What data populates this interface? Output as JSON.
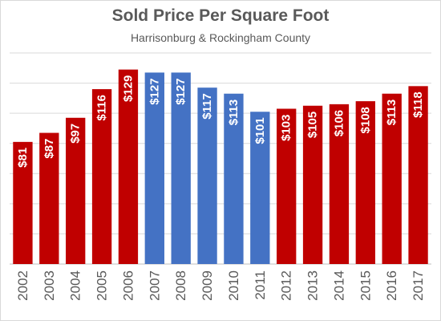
{
  "chart_data": {
    "type": "bar",
    "title": "Sold Price Per Square Foot",
    "subtitle": "Harrisonburg & Rockingham County",
    "categories": [
      "2002",
      "2003",
      "2004",
      "2005",
      "2006",
      "2007",
      "2008",
      "2009",
      "2010",
      "2011",
      "2012",
      "2013",
      "2014",
      "2015",
      "2016",
      "2017"
    ],
    "values": [
      81,
      87,
      97,
      116,
      129,
      127,
      127,
      117,
      113,
      101,
      103,
      105,
      106,
      108,
      113,
      118
    ],
    "data_labels": [
      "$81",
      "$87",
      "$97",
      "$116",
      "$129",
      "$127",
      "$127",
      "$117",
      "$113",
      "$101",
      "$103",
      "$105",
      "$106",
      "$108",
      "$113",
      "$118"
    ],
    "bar_colors": [
      "#c00000",
      "#c00000",
      "#c00000",
      "#c00000",
      "#c00000",
      "#4472c4",
      "#4472c4",
      "#4472c4",
      "#4472c4",
      "#4472c4",
      "#c00000",
      "#c00000",
      "#c00000",
      "#c00000",
      "#c00000",
      "#c00000"
    ],
    "ylim": [
      0,
      140
    ],
    "gridlines": true,
    "legend": "none",
    "xlabel": "",
    "ylabel": ""
  }
}
